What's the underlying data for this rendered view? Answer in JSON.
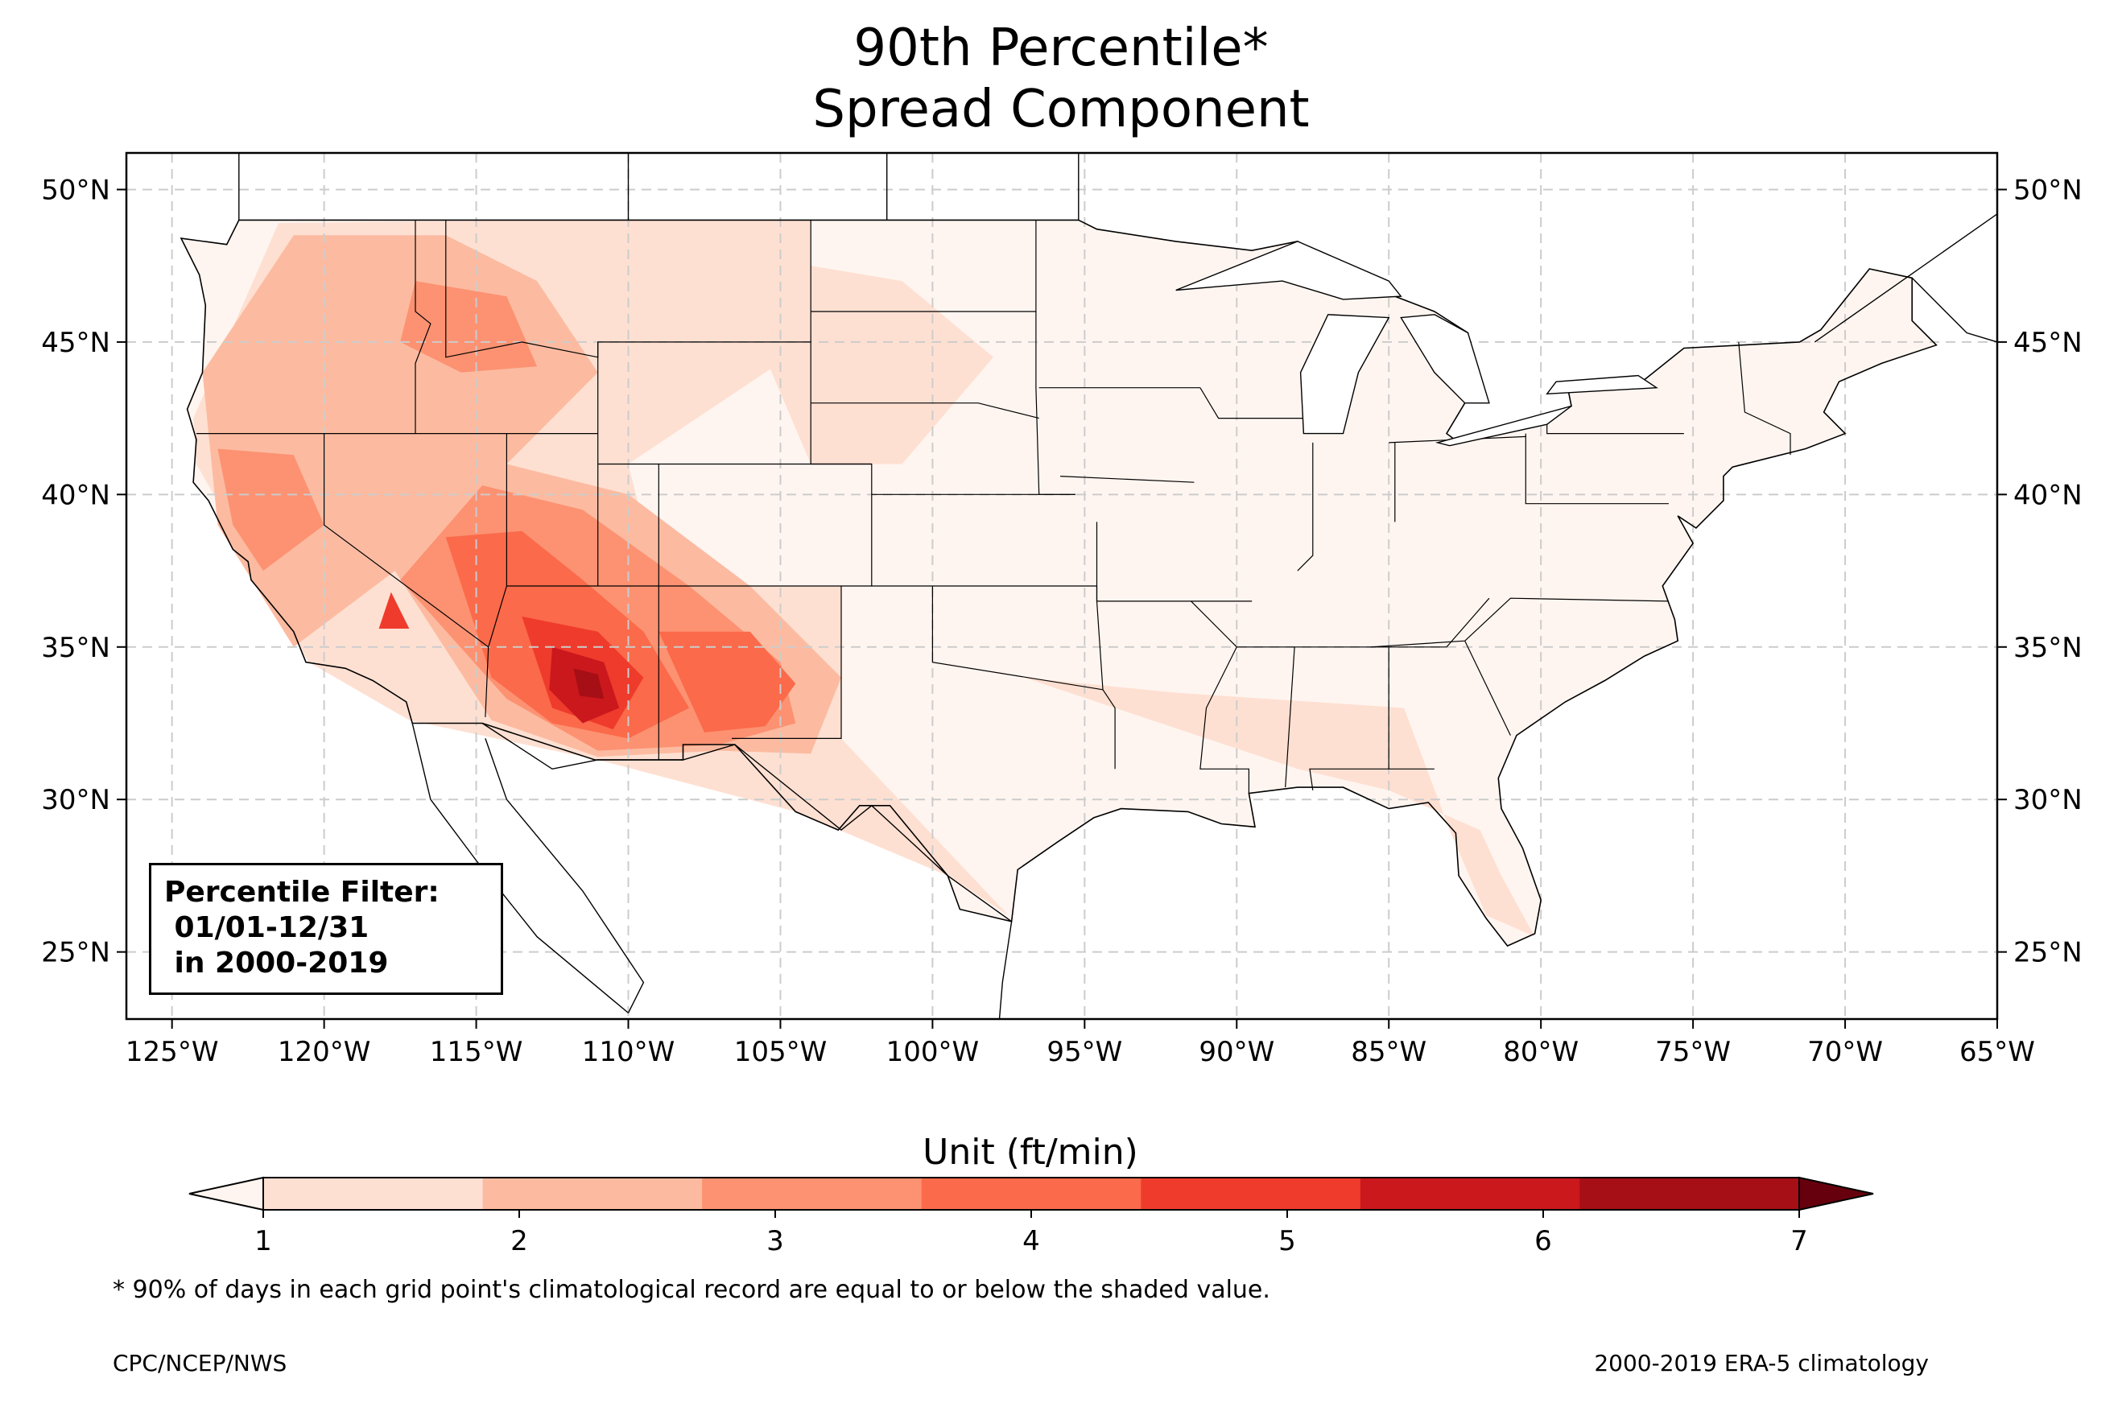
{
  "title": {
    "line1": "90th Percentile*",
    "line2": "Spread Component"
  },
  "map": {
    "lon_range": [
      -126.5,
      -65
    ],
    "lat_range": [
      22.8,
      51.2
    ],
    "lon_ticks": [
      "125°W",
      "120°W",
      "115°W",
      "110°W",
      "105°W",
      "100°W",
      "95°W",
      "90°W",
      "85°W",
      "80°W",
      "75°W",
      "70°W",
      "65°W"
    ],
    "lon_tick_values": [
      -125,
      -120,
      -115,
      -110,
      -105,
      -100,
      -95,
      -90,
      -85,
      -80,
      -75,
      -70,
      -65
    ],
    "lat_ticks": [
      "50°N",
      "45°N",
      "40°N",
      "35°N",
      "30°N",
      "25°N"
    ],
    "lat_tick_values": [
      50,
      45,
      40,
      35,
      30,
      25
    ],
    "gridlines": true
  },
  "filter_box": {
    "line1": "Percentile Filter:",
    "line2": " 01/01-12/31",
    "line3": " in 2000-2019"
  },
  "colorbar": {
    "label": "Unit (ft/min)",
    "ticks": [
      "1",
      "2",
      "3",
      "4",
      "5",
      "6",
      "7"
    ],
    "colors": [
      "#fee0d2",
      "#fcbba1",
      "#fc9272",
      "#fb6a4a",
      "#ef3b2c",
      "#cb181d",
      "#a50f15"
    ],
    "under_color": "#fff5f0",
    "over_color": "#67000d",
    "extend": "both"
  },
  "footnote": "* 90% of days in each grid point's climatological record are equal to or below the shaded value.",
  "credit_left": "CPC/NCEP/NWS",
  "credit_right": "2000-2019 ERA-5 climatology",
  "colors": {
    "ocean": "#ffffff",
    "land": "#ffffff",
    "border": "#000000",
    "county_lines": "#999999"
  }
}
